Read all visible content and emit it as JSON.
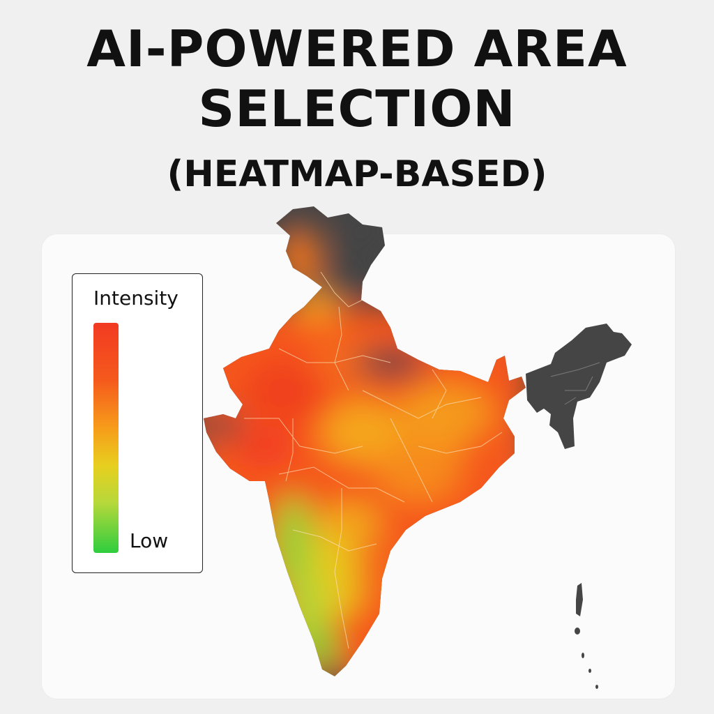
{
  "header": {
    "title_line1": "AI-POWERED AREA",
    "title_line2": "SELECTION",
    "subtitle": "(HEATMAP-BASED)"
  },
  "legend": {
    "title": "Intensity",
    "low_label": "Low",
    "colors": [
      "#f23a22",
      "#f79a1a",
      "#e8cf1e",
      "#2fcd3f"
    ]
  },
  "map": {
    "region": "India",
    "no_data_color": "#454545",
    "high_color": "#f23a22",
    "mid_color": "#f79a1a",
    "low_color": "#2fcd3f"
  }
}
